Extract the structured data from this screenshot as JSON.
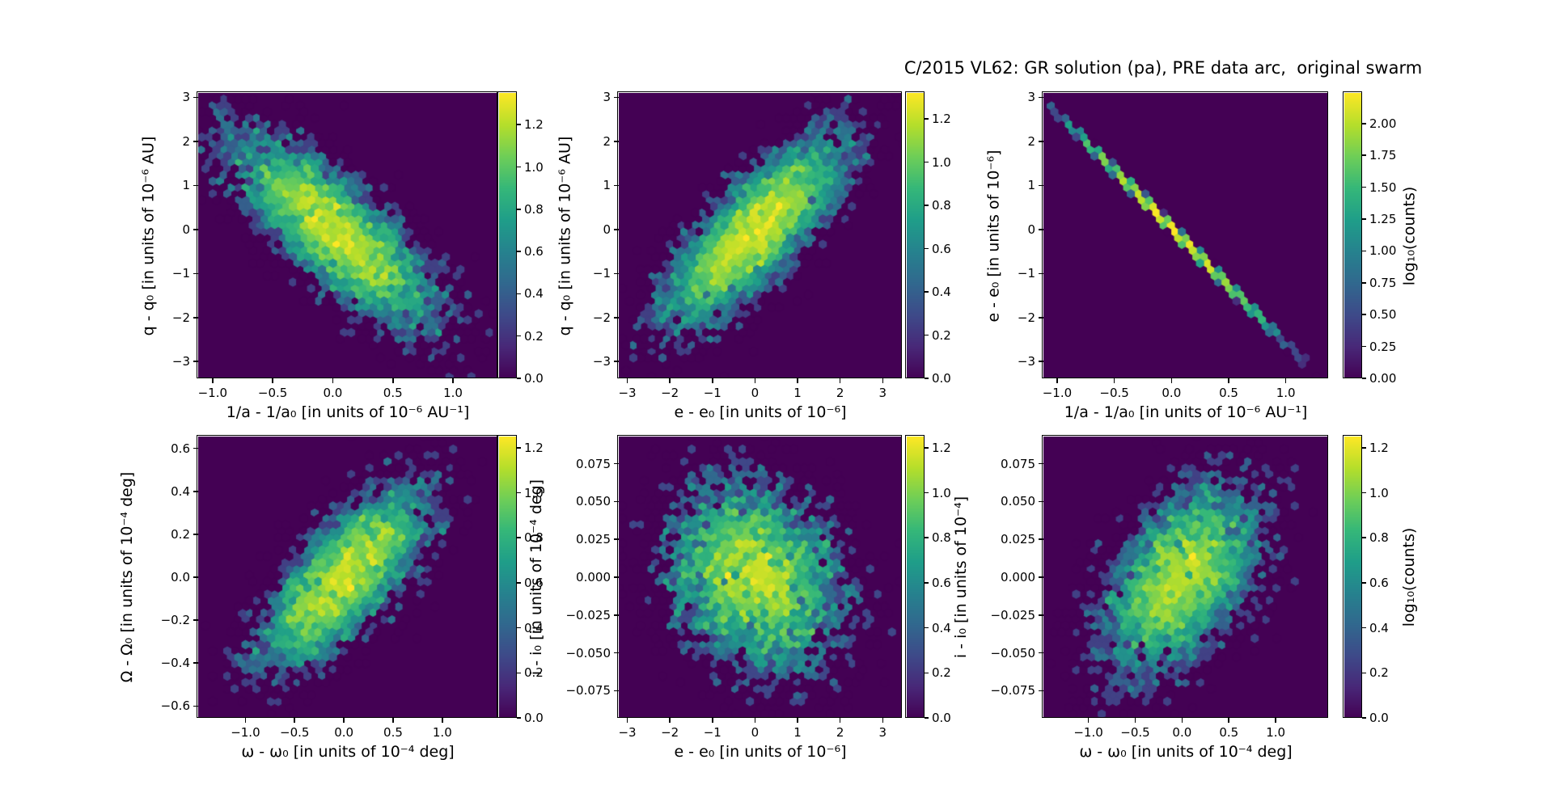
{
  "title": "C/2015 VL62: GR solution (pa), PRE data arc,  original swarm",
  "colors": {
    "background": "#ffffff",
    "hexbin_background": "#440154",
    "text": "#000000",
    "viridis": [
      "#440154",
      "#482878",
      "#3e4a89",
      "#31688e",
      "#26828e",
      "#1f9e89",
      "#35b779",
      "#6ece58",
      "#b5de2b",
      "#fde725"
    ]
  },
  "chart_data": [
    {
      "type": "hexbin",
      "xlabel": "1/a - 1/a₀ [in units of 10⁻⁶ AU⁻¹]",
      "ylabel": "q - q₀ [in units of 10⁻⁶ AU]",
      "xticks": [
        -1.0,
        -0.5,
        0.0,
        0.5,
        1.0
      ],
      "xticklabels": [
        "−1.0",
        "−0.5",
        "0.0",
        "0.5",
        "1.0"
      ],
      "yticks": [
        3,
        2,
        1,
        0,
        -1,
        -2,
        -3
      ],
      "yticklabels": [
        "3",
        "2",
        "1",
        "0",
        "−1",
        "−2",
        "−3"
      ],
      "xlim": [
        -1.12,
        1.37
      ],
      "ylim": [
        -3.38,
        3.1
      ],
      "distribution": {
        "kind": "gaussian",
        "cx": 0.02,
        "cy": -0.05,
        "sx": 0.42,
        "sy": 1.08,
        "rho": -0.78,
        "n": 6000,
        "seed": 11
      },
      "colorbar": {
        "tick_values": [
          1.2,
          1.0,
          0.8,
          0.6,
          0.4,
          0.2,
          0.0
        ],
        "tick_labels": [
          "1.2",
          "1.0",
          "0.8",
          "0.6",
          "0.4",
          "0.2",
          "0.0"
        ],
        "vmin": 0.0,
        "vmax": 1.35,
        "label": null
      }
    },
    {
      "type": "hexbin",
      "xlabel": "e - e₀ [in units of 10⁻⁶]",
      "ylabel": "q - q₀ [in units of 10⁻⁶ AU]",
      "xticks": [
        -3,
        -2,
        -1,
        0,
        1,
        2,
        3
      ],
      "xticklabels": [
        "−3",
        "−2",
        "−1",
        "0",
        "1",
        "2",
        "3"
      ],
      "yticks": [
        3,
        2,
        1,
        0,
        -1,
        -2,
        -3
      ],
      "yticklabels": [
        "3",
        "2",
        "1",
        "0",
        "−1",
        "−2",
        "−3"
      ],
      "xlim": [
        -3.2,
        3.45
      ],
      "ylim": [
        -3.38,
        3.1
      ],
      "distribution": {
        "kind": "gaussian",
        "cx": 0.0,
        "cy": -0.05,
        "sx": 1.05,
        "sy": 1.08,
        "rho": 0.78,
        "n": 6000,
        "seed": 22
      },
      "colorbar": {
        "tick_values": [
          1.2,
          1.0,
          0.8,
          0.6,
          0.4,
          0.2,
          0.0
        ],
        "tick_labels": [
          "1.2",
          "1.0",
          "0.8",
          "0.6",
          "0.4",
          "0.2",
          "0.0"
        ],
        "vmin": 0.0,
        "vmax": 1.32,
        "label": null
      }
    },
    {
      "type": "hexbin",
      "xlabel": "1/a - 1/a₀ [in units of 10⁻⁶ AU⁻¹]",
      "ylabel": "e - e₀ [in units of 10⁻⁶]",
      "xticks": [
        -1.0,
        -0.5,
        0.0,
        0.5,
        1.0
      ],
      "xticklabels": [
        "−1.0",
        "−0.5",
        "0.0",
        "0.5",
        "1.0"
      ],
      "yticks": [
        3,
        2,
        1,
        0,
        -1,
        -2,
        -3
      ],
      "yticklabels": [
        "3",
        "2",
        "1",
        "0",
        "−1",
        "−2",
        "−3"
      ],
      "xlim": [
        -1.12,
        1.37
      ],
      "ylim": [
        -3.38,
        3.1
      ],
      "distribution": {
        "kind": "line",
        "cx": 0.02,
        "sx": 0.4,
        "slope": -2.64,
        "intercept": 0.03,
        "noise": 0.018,
        "n": 3200,
        "seed": 33
      },
      "colorbar": {
        "tick_values": [
          2.0,
          1.75,
          1.5,
          1.25,
          1.0,
          0.75,
          0.5,
          0.25,
          0.0
        ],
        "tick_labels": [
          "2.00",
          "1.75",
          "1.50",
          "1.25",
          "1.00",
          "0.75",
          "0.50",
          "0.25",
          "0.00"
        ],
        "vmin": 0.0,
        "vmax": 2.24,
        "label": "log₁₀(counts)"
      }
    },
    {
      "type": "hexbin",
      "xlabel": "ω - ω₀ [in units of 10⁻⁴ deg]",
      "ylabel": "Ω - Ω₀ [in units of 10⁻⁴ deg]",
      "xticks": [
        -1.0,
        -0.5,
        0.0,
        0.5,
        1.0
      ],
      "xticklabels": [
        "−1.0",
        "−0.5",
        "0.0",
        "0.5",
        "1.0"
      ],
      "yticks": [
        0.6,
        0.4,
        0.2,
        0.0,
        -0.2,
        -0.4,
        -0.6
      ],
      "yticklabels": [
        "0.6",
        "0.4",
        "0.2",
        "0.0",
        "−0.2",
        "−0.4",
        "−0.6"
      ],
      "xlim": [
        -1.48,
        1.56
      ],
      "ylim": [
        -0.655,
        0.655
      ],
      "distribution": {
        "kind": "gaussian",
        "cx": 0.0,
        "cy": 0.0,
        "sx": 0.42,
        "sy": 0.21,
        "rho": 0.72,
        "n": 5200,
        "seed": 44
      },
      "colorbar": {
        "tick_values": [
          1.2,
          1.0,
          0.8,
          0.6,
          0.4,
          0.2,
          0.0
        ],
        "tick_labels": [
          "1.2",
          "1.0",
          "0.8",
          "0.6",
          "0.4",
          "0.2",
          "0.0"
        ],
        "vmin": 0.0,
        "vmax": 1.25,
        "label": null
      }
    },
    {
      "type": "hexbin",
      "xlabel": "e - e₀ [in units of 10⁻⁶]",
      "ylabel": "i - i₀ [in units of 10⁻⁴ deg]",
      "xticks": [
        -3,
        -2,
        -1,
        0,
        1,
        2,
        3
      ],
      "xticklabels": [
        "−3",
        "−2",
        "−1",
        "0",
        "1",
        "2",
        "3"
      ],
      "yticks": [
        0.075,
        0.05,
        0.025,
        0.0,
        -0.025,
        -0.05,
        -0.075
      ],
      "yticklabels": [
        "0.075",
        "0.050",
        "0.025",
        "0.000",
        "−0.025",
        "−0.050",
        "−0.075"
      ],
      "xlim": [
        -3.2,
        3.45
      ],
      "ylim": [
        -0.093,
        0.093
      ],
      "distribution": {
        "kind": "gaussian",
        "cx": 0.0,
        "cy": 0.0,
        "sx": 1.05,
        "sy": 0.032,
        "rho": -0.2,
        "n": 5200,
        "seed": 55
      },
      "colorbar": {
        "tick_values": [
          1.2,
          1.0,
          0.8,
          0.6,
          0.4,
          0.2,
          0.0
        ],
        "tick_labels": [
          "1.2",
          "1.0",
          "0.8",
          "0.6",
          "0.4",
          "0.2",
          "0.0"
        ],
        "vmin": 0.0,
        "vmax": 1.25,
        "label": null
      }
    },
    {
      "type": "hexbin",
      "xlabel": "ω - ω₀ [in units of 10⁻⁴ deg]",
      "ylabel": "i - i₀ [in units of 10⁻⁴]",
      "xticks": [
        -1.0,
        -0.5,
        0.0,
        0.5,
        1.0
      ],
      "xticklabels": [
        "−1.0",
        "−0.5",
        "0.0",
        "0.5",
        "1.0"
      ],
      "yticks": [
        0.075,
        0.05,
        0.025,
        0.0,
        -0.025,
        -0.05,
        -0.075
      ],
      "yticklabels": [
        "0.075",
        "0.050",
        "0.025",
        "0.000",
        "−0.025",
        "−0.050",
        "−0.075"
      ],
      "xlim": [
        -1.48,
        1.56
      ],
      "ylim": [
        -0.093,
        0.093
      ],
      "distribution": {
        "kind": "gaussian",
        "cx": 0.0,
        "cy": 0.0,
        "sx": 0.42,
        "sy": 0.031,
        "rho": 0.5,
        "n": 5200,
        "seed": 66
      },
      "colorbar": {
        "tick_values": [
          1.2,
          1.0,
          0.8,
          0.6,
          0.4,
          0.2,
          0.0
        ],
        "tick_labels": [
          "1.2",
          "1.0",
          "0.8",
          "0.6",
          "0.4",
          "0.2",
          "0.0"
        ],
        "vmin": 0.0,
        "vmax": 1.25,
        "label": "log₁₀(counts)"
      }
    }
  ]
}
